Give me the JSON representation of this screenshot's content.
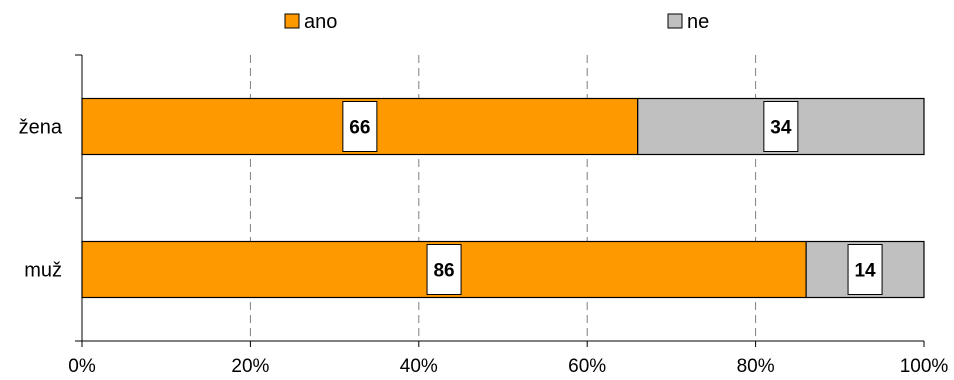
{
  "chart_data": {
    "type": "bar",
    "orientation": "horizontal",
    "stacked": true,
    "categories": [
      "žena",
      "muž"
    ],
    "series": [
      {
        "name": "ano",
        "values": [
          66,
          86
        ],
        "color": "#FF9900"
      },
      {
        "name": "ne",
        "values": [
          34,
          14
        ],
        "color": "#C0C0C0"
      }
    ],
    "x_ticks": [
      "0%",
      "20%",
      "40%",
      "60%",
      "80%",
      "100%"
    ],
    "xlim": [
      0,
      100
    ],
    "grid": "vertical-dashed",
    "legend_position": "top",
    "data_labels": true
  }
}
